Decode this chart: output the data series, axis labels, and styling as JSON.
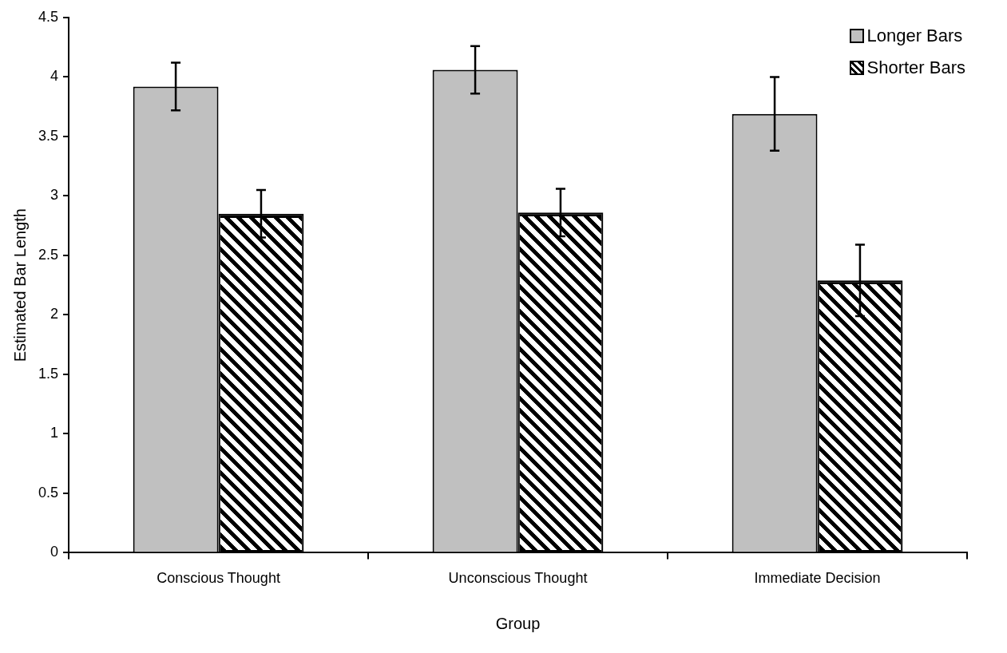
{
  "chart_data": {
    "type": "bar",
    "xlabel": "Group",
    "ylabel": "Estimated Bar Length",
    "categories": [
      "Conscious Thought",
      "Unconscious Thought",
      "Immediate Decision"
    ],
    "series": [
      {
        "name": "Longer Bars",
        "color": "#c0c0c0",
        "values": [
          3.92,
          4.06,
          3.69
        ],
        "errors": [
          0.2,
          0.2,
          0.31
        ]
      },
      {
        "name": "Shorter Bars",
        "color": "#000000",
        "values": [
          2.85,
          2.86,
          2.29
        ],
        "errors": [
          0.2,
          0.2,
          0.3
        ]
      }
    ],
    "ylim": [
      0,
      4.5
    ],
    "yticks": [
      0,
      0.5,
      1,
      1.5,
      2,
      2.5,
      3,
      3.5,
      4,
      4.5
    ],
    "grid": false,
    "legend": "top right"
  }
}
